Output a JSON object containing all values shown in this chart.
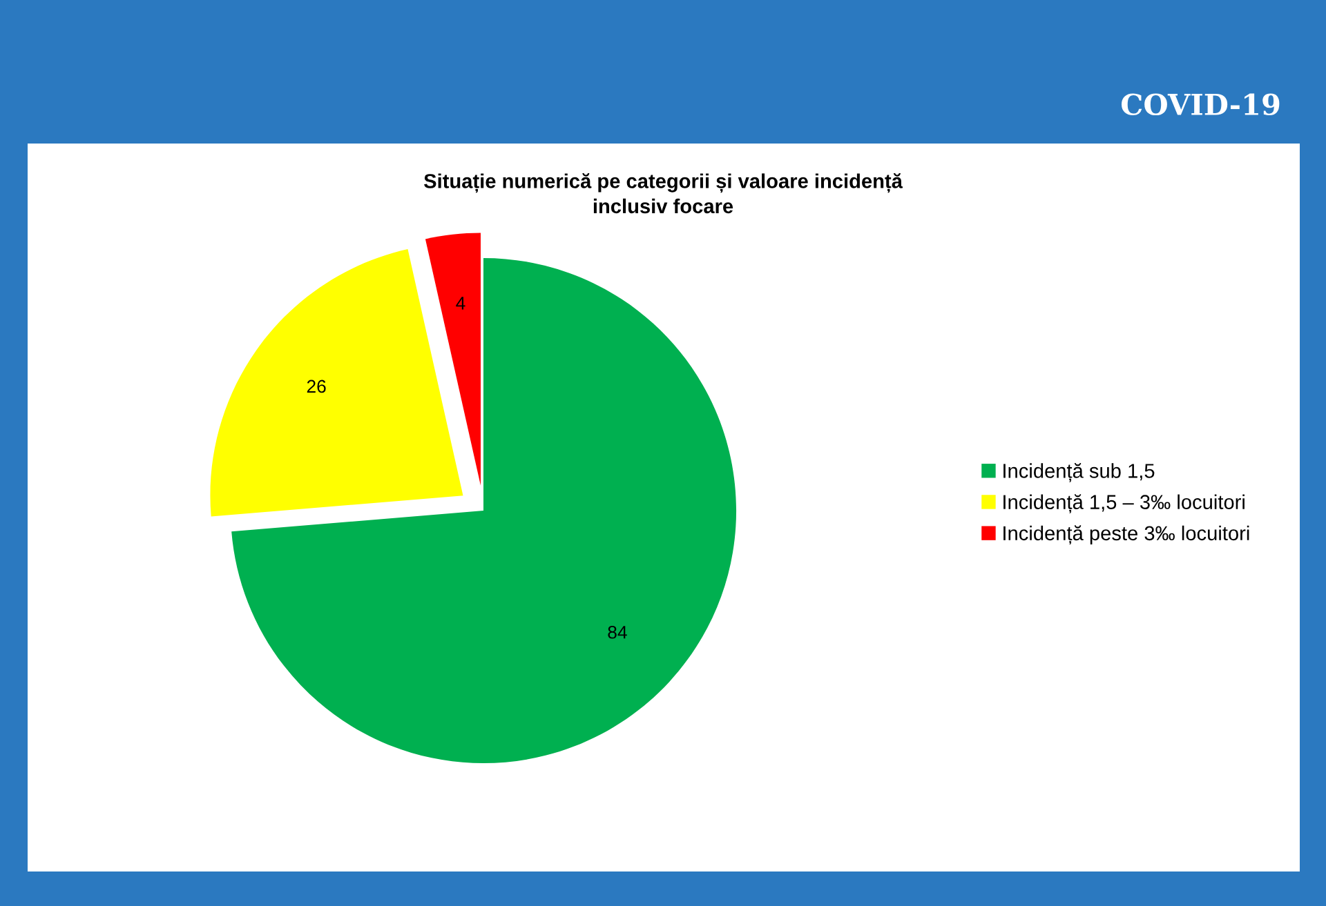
{
  "chart_data": {
    "type": "pie",
    "title": "Situație numerică pe categorii și valoare incidență\ninclusiv focare",
    "categories": [
      "Incidență sub 1,5",
      "Incidență 1,5 – 3‰ locuitori",
      "Incidență peste 3‰ locuitori"
    ],
    "values": [
      84,
      26,
      4
    ],
    "colors": [
      "#00b050",
      "#ffff00",
      "#ff0000"
    ],
    "data_labels": true,
    "legend": "right",
    "annotations": [
      "COVID-19"
    ]
  }
}
